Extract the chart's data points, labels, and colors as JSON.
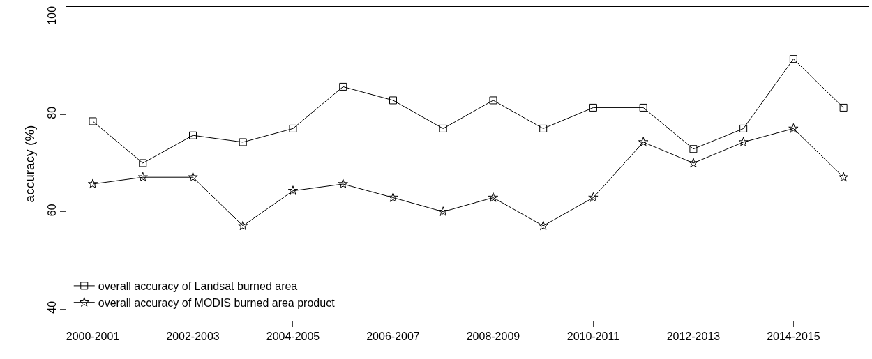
{
  "chart_data": {
    "type": "line",
    "ylabel": "accuracy (%)",
    "categories": [
      "2000-2001",
      null,
      "2002-2003",
      null,
      "2004-2005",
      null,
      "2006-2007",
      null,
      "2008-2009",
      null,
      "2010-2011",
      null,
      "2012-2013",
      null,
      "2014-2015",
      null
    ],
    "series": [
      {
        "name": "overall accuracy of Landsat burned area",
        "color": "#000000",
        "marker": "square",
        "values": [
          78.6,
          70.0,
          75.7,
          74.3,
          77.1,
          85.7,
          82.9,
          77.1,
          82.9,
          77.1,
          81.4,
          81.4,
          72.9,
          77.1,
          91.4,
          81.4
        ]
      },
      {
        "name": "overall accuracy of MODIS burned area product",
        "color": "#000000",
        "marker": "star",
        "values": [
          65.7,
          67.1,
          67.1,
          57.1,
          64.3,
          65.7,
          62.9,
          60.0,
          62.9,
          57.1,
          62.9,
          74.3,
          70.0,
          74.3,
          77.1,
          67.1
        ]
      }
    ],
    "ylim": [
      37.6,
      102.1
    ],
    "yticks": [
      40,
      60,
      80,
      100
    ],
    "grid": false,
    "legend": "bottom left",
    "line_style": "solid"
  }
}
